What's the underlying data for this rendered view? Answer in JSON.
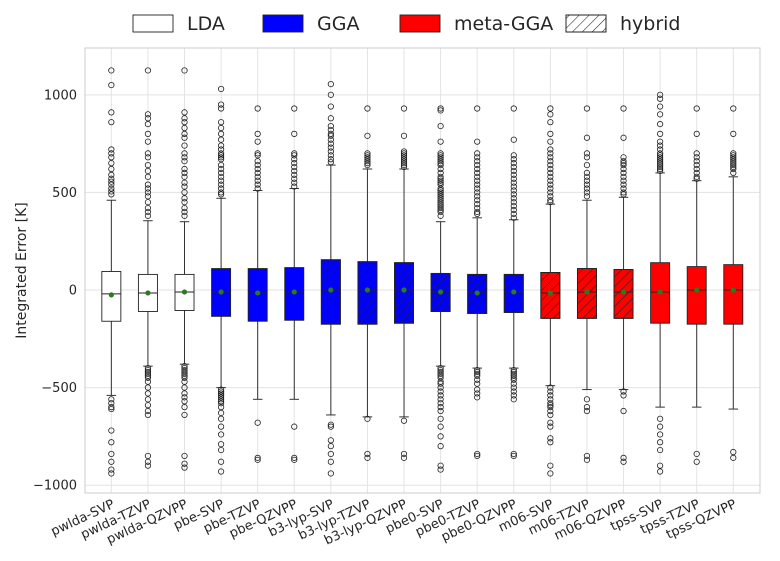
{
  "chart_data": {
    "type": "box",
    "title": "",
    "xlabel": "",
    "ylabel": "Integrated Error [K]",
    "ylim": [
      -1040,
      1240
    ],
    "yticks": [
      -1000,
      -500,
      0,
      500,
      1000
    ],
    "ytick_labels": [
      "−1000",
      "−500",
      "0",
      "500",
      "1000"
    ],
    "grid": true,
    "legend_position": "top",
    "legend": [
      {
        "key": "lda",
        "label": "LDA",
        "color": "#ffffff"
      },
      {
        "key": "gga",
        "label": "GGA",
        "color": "#0000ff"
      },
      {
        "key": "meta",
        "label": "meta-GGA",
        "color": "#ff0000"
      },
      {
        "key": "hybrid",
        "label": "hybrid",
        "color": "#ffffff",
        "hatch": true
      }
    ],
    "colors": {
      "lda": "#ffffff",
      "gga": "#0000ff",
      "meta": "#ff0000"
    },
    "categories": [
      "pwlda-SVP",
      "pwlda-TZVP",
      "pwlda-QZVPP",
      "pbe-SVP",
      "pbe-TZVP",
      "pbe-QZVPP",
      "b3-lyp-SVP",
      "b3-lyp-TZVP",
      "b3-lyp-QZVPP",
      "pbe0-SVP",
      "pbe0-TZVP",
      "pbe0-QZVPP",
      "m06-SVP",
      "m06-TZVP",
      "m06-QZVPP",
      "tpss-SVP",
      "tpss-TZVP",
      "tpss-QZVPP"
    ],
    "series": [
      {
        "name": "pwlda-SVP",
        "family": "lda",
        "hybrid": false,
        "q1": -160,
        "median": -20,
        "q3": 95,
        "whislo": -540,
        "whishi": 460,
        "mean": -25,
        "fliers": [
          1125,
          1050,
          910,
          860,
          720,
          700,
          680,
          650,
          620,
          590,
          570,
          555,
          540,
          520,
          505,
          490,
          -560,
          -580,
          -600,
          -610,
          -720,
          -780,
          -840,
          -880,
          -920,
          -940
        ]
      },
      {
        "name": "pwlda-TZVP",
        "family": "lda",
        "hybrid": false,
        "q1": -110,
        "median": -15,
        "q3": 80,
        "whislo": -390,
        "whishi": 355,
        "mean": -15,
        "fliers": [
          1125,
          900,
          880,
          850,
          800,
          760,
          700,
          680,
          640,
          610,
          580,
          540,
          520,
          500,
          480,
          450,
          420,
          400,
          380,
          -400,
          -410,
          -420,
          -430,
          -440,
          -450,
          -470,
          -500,
          -530,
          -560,
          -590,
          -620,
          -640,
          -850,
          -880,
          -900
        ]
      },
      {
        "name": "pwlda-QZVPP",
        "family": "lda",
        "hybrid": false,
        "q1": -105,
        "median": -10,
        "q3": 80,
        "whislo": -380,
        "whishi": 350,
        "mean": -10,
        "fliers": [
          1125,
          910,
          880,
          860,
          830,
          800,
          780,
          740,
          700,
          680,
          660,
          620,
          600,
          580,
          550,
          530,
          500,
          470,
          450,
          420,
          400,
          380,
          -390,
          -400,
          -410,
          -420,
          -430,
          -440,
          -450,
          -470,
          -500,
          -530,
          -550,
          -570,
          -600,
          -640,
          -850,
          -890,
          -910
        ]
      },
      {
        "name": "pbe-SVP",
        "family": "gga",
        "hybrid": false,
        "q1": -135,
        "median": -10,
        "q3": 110,
        "whislo": -500,
        "whishi": 470,
        "mean": -10,
        "fliers": [
          1030,
          950,
          930,
          860,
          830,
          800,
          770,
          740,
          720,
          700,
          690,
          680,
          670,
          640,
          620,
          600,
          580,
          560,
          540,
          520,
          500,
          490,
          -510,
          -520,
          -530,
          -540,
          -550,
          -560,
          -570,
          -580,
          -600,
          -630,
          -660,
          -700,
          -740,
          -790,
          -820,
          -880,
          -930
        ]
      },
      {
        "name": "pbe-TZVP",
        "family": "gga",
        "hybrid": false,
        "q1": -160,
        "median": -15,
        "q3": 110,
        "whislo": -560,
        "whishi": 510,
        "mean": -15,
        "fliers": [
          930,
          800,
          760,
          700,
          690,
          660,
          640,
          620,
          600,
          580,
          560,
          540,
          520,
          -680,
          -860,
          -870
        ]
      },
      {
        "name": "pbe-QZVPP",
        "family": "gga",
        "hybrid": false,
        "q1": -155,
        "median": -10,
        "q3": 115,
        "whislo": -560,
        "whishi": 520,
        "mean": -10,
        "fliers": [
          930,
          800,
          700,
          690,
          670,
          650,
          630,
          610,
          590,
          570,
          550,
          530,
          -700,
          -860,
          -870
        ]
      },
      {
        "name": "b3-lyp-SVP",
        "family": "gga",
        "hybrid": true,
        "q1": -175,
        "median": 0,
        "q3": 155,
        "whislo": -640,
        "whishi": 640,
        "mean": 0,
        "fliers": [
          1055,
          1000,
          940,
          880,
          840,
          820,
          800,
          790,
          770,
          750,
          730,
          710,
          690,
          670,
          655,
          -690,
          -700,
          -770,
          -800,
          -840,
          -880,
          -940
        ]
      },
      {
        "name": "b3-lyp-TZVP",
        "family": "gga",
        "hybrid": true,
        "q1": -175,
        "median": 0,
        "q3": 145,
        "whislo": -650,
        "whishi": 620,
        "mean": 0,
        "fliers": [
          930,
          790,
          700,
          690,
          680,
          670,
          660,
          650,
          640,
          -660,
          -840,
          -860
        ]
      },
      {
        "name": "b3-lyp-QZVPP",
        "family": "gga",
        "hybrid": true,
        "q1": -170,
        "median": 0,
        "q3": 140,
        "whislo": -650,
        "whishi": 620,
        "mean": 0,
        "fliers": [
          930,
          790,
          710,
          700,
          690,
          680,
          670,
          660,
          650,
          640,
          630,
          -670,
          -840,
          -860
        ]
      },
      {
        "name": "pbe0-SVP",
        "family": "gga",
        "hybrid": true,
        "q1": -110,
        "median": -10,
        "q3": 85,
        "whislo": -390,
        "whishi": 350,
        "mean": -10,
        "fliers": [
          930,
          920,
          840,
          760,
          700,
          690,
          680,
          670,
          660,
          650,
          640,
          620,
          600,
          580,
          570,
          560,
          550,
          540,
          520,
          510,
          500,
          490,
          480,
          470,
          460,
          450,
          440,
          430,
          420,
          410,
          400,
          380,
          -400,
          -410,
          -420,
          -430,
          -440,
          -450,
          -470,
          -480,
          -500,
          -520,
          -540,
          -560,
          -580,
          -600,
          -620,
          -660,
          -700,
          -750,
          -800,
          -900,
          -920
        ]
      },
      {
        "name": "pbe0-TZVP",
        "family": "gga",
        "hybrid": true,
        "q1": -120,
        "median": -15,
        "q3": 80,
        "whislo": -400,
        "whishi": 370,
        "mean": -15,
        "fliers": [
          930,
          760,
          700,
          680,
          660,
          640,
          620,
          600,
          580,
          560,
          540,
          520,
          500,
          480,
          460,
          440,
          420,
          400,
          390,
          -410,
          -420,
          -430,
          -440,
          -460,
          -480,
          -510,
          -530,
          -550,
          -840,
          -850
        ]
      },
      {
        "name": "pbe0-QZVPP",
        "family": "gga",
        "hybrid": true,
        "q1": -115,
        "median": -10,
        "q3": 80,
        "whislo": -400,
        "whishi": 360,
        "mean": -10,
        "fliers": [
          930,
          770,
          690,
          670,
          650,
          630,
          610,
          590,
          570,
          550,
          530,
          510,
          490,
          470,
          450,
          430,
          410,
          390,
          370,
          -410,
          -420,
          -430,
          -440,
          -450,
          -460,
          -480,
          -500,
          -520,
          -540,
          -560,
          -840,
          -850
        ]
      },
      {
        "name": "m06-SVP",
        "family": "meta",
        "hybrid": true,
        "q1": -145,
        "median": -15,
        "q3": 90,
        "whislo": -490,
        "whishi": 440,
        "mean": -15,
        "fliers": [
          930,
          900,
          860,
          800,
          760,
          720,
          700,
          680,
          660,
          640,
          620,
          600,
          580,
          560,
          540,
          520,
          500,
          480,
          460,
          450,
          -500,
          -520,
          -540,
          -560,
          -580,
          -590,
          -600,
          -620,
          -640,
          -680,
          -700,
          -760,
          -780,
          -900,
          -940
        ]
      },
      {
        "name": "m06-TZVP",
        "family": "meta",
        "hybrid": true,
        "q1": -145,
        "median": -10,
        "q3": 110,
        "whislo": -510,
        "whishi": 460,
        "mean": -10,
        "fliers": [
          930,
          780,
          700,
          680,
          640,
          600,
          580,
          560,
          540,
          520,
          500,
          480,
          -560,
          -600,
          -620,
          -850,
          -870
        ]
      },
      {
        "name": "m06-QZVPP",
        "family": "meta",
        "hybrid": true,
        "q1": -145,
        "median": -10,
        "q3": 105,
        "whislo": -510,
        "whishi": 475,
        "mean": -10,
        "fliers": [
          930,
          780,
          680,
          660,
          650,
          640,
          620,
          600,
          580,
          560,
          540,
          520,
          500,
          490,
          -520,
          -540,
          -620,
          -860,
          -880
        ]
      },
      {
        "name": "tpss-SVP",
        "family": "meta",
        "hybrid": false,
        "q1": -170,
        "median": -10,
        "q3": 140,
        "whislo": -600,
        "whishi": 600,
        "mean": -10,
        "fliers": [
          1000,
          980,
          940,
          900,
          850,
          800,
          760,
          740,
          720,
          700,
          690,
          680,
          670,
          660,
          650,
          640,
          630,
          620,
          610,
          -660,
          -700,
          -740,
          -780,
          -820,
          -900,
          -930
        ]
      },
      {
        "name": "tpss-TZVP",
        "family": "meta",
        "hybrid": false,
        "q1": -175,
        "median": 0,
        "q3": 120,
        "whislo": -600,
        "whishi": 560,
        "mean": 0,
        "fliers": [
          930,
          800,
          700,
          680,
          660,
          640,
          620,
          600,
          580,
          570,
          -840,
          -880
        ]
      },
      {
        "name": "tpss-QZVPP",
        "family": "meta",
        "hybrid": false,
        "q1": -175,
        "median": 0,
        "q3": 130,
        "whislo": -610,
        "whishi": 580,
        "mean": 0,
        "fliers": [
          930,
          800,
          700,
          690,
          680,
          670,
          660,
          650,
          640,
          630,
          620,
          600,
          -830,
          -860
        ]
      }
    ]
  }
}
